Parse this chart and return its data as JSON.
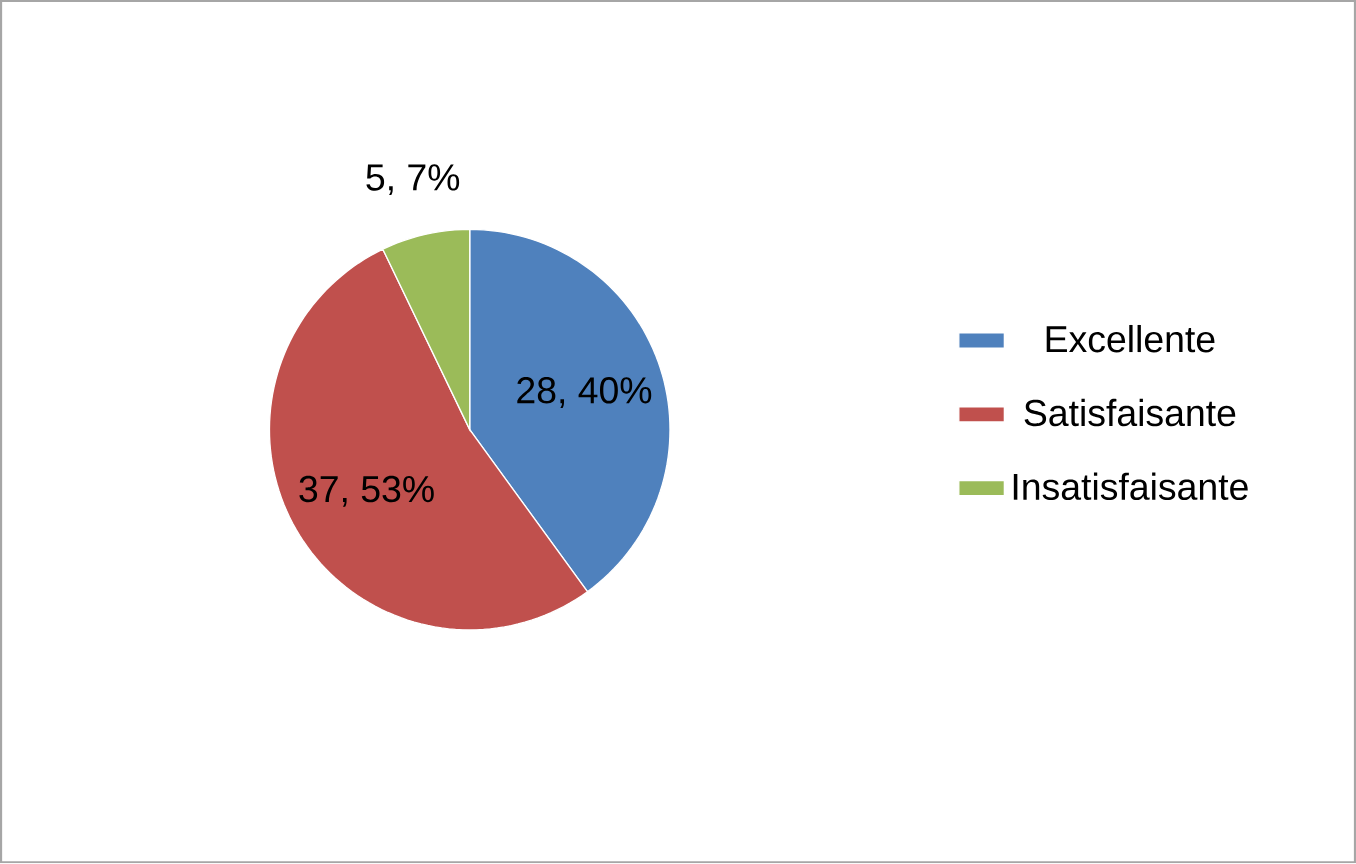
{
  "chart_data": {
    "type": "pie",
    "categories": [
      "Excellente",
      "Satisfaisante",
      "Insatisfaisante"
    ],
    "values": [
      28,
      37,
      5
    ],
    "colors": [
      "#4f81bd",
      "#c0504d",
      "#9bbb59"
    ],
    "value_labels": [
      "28, 40%",
      "37, 53%",
      "5, 7%"
    ],
    "legend": "right"
  }
}
